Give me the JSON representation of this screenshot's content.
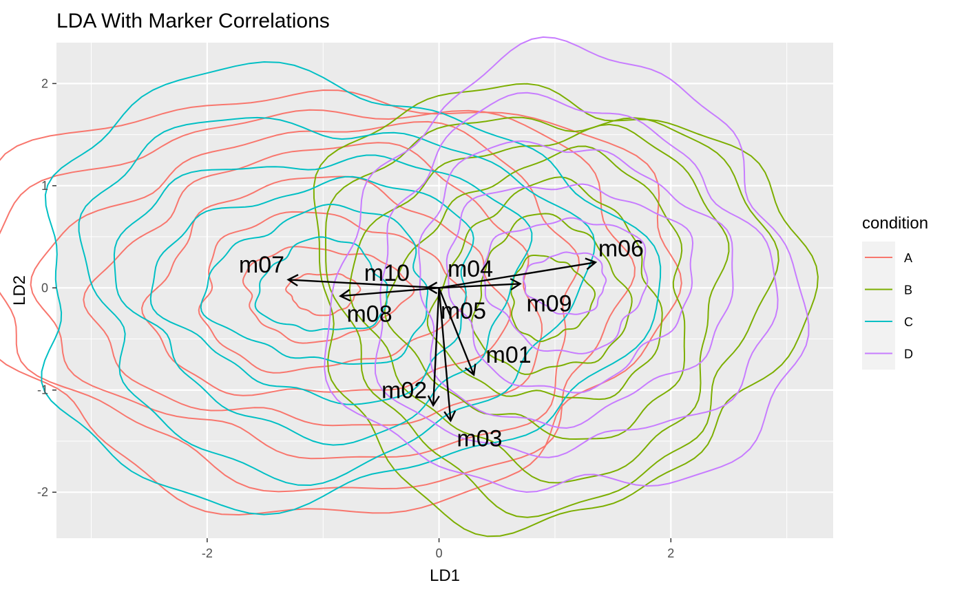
{
  "chart_data": {
    "type": "line",
    "title": "LDA With Marker Correlations",
    "xlabel": "LD1",
    "ylabel": "LD2",
    "xlim": [
      -3.3,
      3.4
    ],
    "ylim": [
      -2.45,
      2.4
    ],
    "xticks": [
      -2,
      0,
      2
    ],
    "yticks": [
      -2,
      -1,
      0,
      1,
      2
    ],
    "xtick_labels": [
      "-2",
      "0",
      "2"
    ],
    "ytick_labels": [
      "-2",
      "-1",
      "0",
      "1",
      "2"
    ],
    "grid": true,
    "legend": {
      "title": "condition",
      "position": "right"
    },
    "series": [
      {
        "name": "A",
        "color": "#F8766D",
        "center": [
          -1.0,
          -0.05
        ],
        "rx": [
          0.3,
          0.7,
          1.1,
          1.5,
          1.9,
          2.3,
          2.7,
          3.0
        ],
        "ry": [
          0.2,
          0.45,
          0.75,
          1.05,
          1.35,
          1.6,
          1.85,
          2.05
        ],
        "lobe": 0.08
      },
      {
        "name": "B",
        "color": "#7CAE00",
        "center": [
          0.95,
          -0.1
        ],
        "rx": [
          0.35,
          0.65,
          0.95,
          1.25,
          1.55,
          1.85,
          2.1
        ],
        "ry": [
          0.4,
          0.75,
          1.05,
          1.35,
          1.65,
          1.9,
          2.1
        ],
        "lobe": 0.09
      },
      {
        "name": "C",
        "color": "#00BFC4",
        "center": [
          -1.0,
          0.0
        ],
        "rx": [
          0.55,
          0.95,
          1.35,
          1.7,
          2.1,
          2.6
        ],
        "ry": [
          0.45,
          0.75,
          1.05,
          1.35,
          1.7,
          2.05
        ],
        "lobe": 0.1
      },
      {
        "name": "D",
        "color": "#C77CFF",
        "center": [
          1.1,
          0.05
        ],
        "rx": [
          0.35,
          0.7,
          1.05,
          1.35,
          1.7,
          2.0
        ],
        "ry": [
          0.3,
          0.65,
          1.0,
          1.35,
          1.7,
          2.15
        ],
        "lobe": 0.08
      }
    ],
    "arrows": [
      {
        "label": "m01",
        "x": 0.3,
        "y": -0.85,
        "label_x": 0.6,
        "label_y": -0.65
      },
      {
        "label": "m02",
        "x": -0.05,
        "y": -1.15,
        "label_x": -0.3,
        "label_y": -1.0
      },
      {
        "label": "m03",
        "x": 0.1,
        "y": -1.3,
        "label_x": 0.35,
        "label_y": -1.47
      },
      {
        "label": "m04",
        "x": 0.0,
        "y": 0.0,
        "label_x": 0.27,
        "label_y": 0.19
      },
      {
        "label": "m05",
        "x": 0.0,
        "y": -0.02,
        "label_x": 0.21,
        "label_y": -0.22
      },
      {
        "label": "m06",
        "x": 1.35,
        "y": 0.25,
        "label_x": 1.57,
        "label_y": 0.39
      },
      {
        "label": "m07",
        "x": -1.3,
        "y": 0.08,
        "label_x": -1.53,
        "label_y": 0.23
      },
      {
        "label": "m08",
        "x": -0.85,
        "y": -0.08,
        "label_x": -0.6,
        "label_y": -0.25
      },
      {
        "label": "m09",
        "x": 0.7,
        "y": 0.04,
        "label_x": 0.95,
        "label_y": -0.15
      },
      {
        "label": "m10",
        "x": -0.1,
        "y": 0.0,
        "label_x": -0.45,
        "label_y": 0.15
      }
    ]
  }
}
